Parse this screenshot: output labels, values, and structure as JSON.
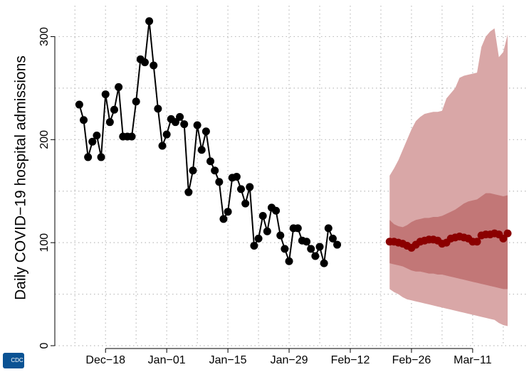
{
  "chart_data": {
    "type": "line",
    "y_label": "Daily COVID−19 hospital admissions",
    "logo_text": "CDC",
    "xlim": [
      -11.6,
      96.4
    ],
    "ylim": [
      0,
      330
    ],
    "xticks": [
      {
        "value": 0,
        "label": "Dec−18"
      },
      {
        "value": 14,
        "label": "Jan−01"
      },
      {
        "value": 28,
        "label": "Jan−15"
      },
      {
        "value": 42,
        "label": "Jan−29"
      },
      {
        "value": 56,
        "label": "Feb−12"
      },
      {
        "value": 70,
        "label": "Feb−26"
      },
      {
        "value": 84,
        "label": "Mar−11"
      }
    ],
    "xminor": [
      -7,
      7,
      21,
      35,
      49,
      63,
      77,
      91
    ],
    "yticks": [
      0,
      100,
      200,
      300
    ],
    "yminor": [
      50,
      150,
      250
    ],
    "grid": true,
    "observed": {
      "color": "#000000",
      "x": [
        -6,
        -5,
        -4,
        -3,
        -2,
        -1,
        0,
        1,
        2,
        3,
        4,
        5,
        6,
        7,
        8,
        9,
        10,
        11,
        12,
        13,
        14,
        15,
        16,
        17,
        18,
        19,
        20,
        21,
        22,
        23,
        24,
        25,
        26,
        27,
        28,
        29,
        30,
        31,
        32,
        33,
        34,
        35,
        36,
        37,
        38,
        39,
        40,
        41,
        42,
        43,
        44,
        45,
        46,
        47,
        48,
        49,
        50,
        51,
        52,
        53
      ],
      "values": [
        234,
        219,
        183,
        198,
        204,
        183,
        244,
        217,
        229,
        251,
        203,
        203,
        203,
        237,
        278,
        275,
        315,
        272,
        230,
        194,
        205,
        220,
        217,
        222,
        215,
        149,
        170,
        214,
        190,
        208,
        179,
        170,
        159,
        123,
        130,
        163,
        164,
        152,
        138,
        154,
        97,
        104,
        126,
        111,
        134,
        131,
        107,
        94,
        82,
        114,
        114,
        102,
        101,
        94,
        87,
        96,
        80,
        114,
        104,
        98
      ]
    },
    "forecast": {
      "median_color": "#8b0000",
      "inner_color": "#c27777",
      "outer_color": "#d9a7a7",
      "x": [
        65,
        66,
        67,
        68,
        69,
        70,
        71,
        72,
        73,
        74,
        75,
        76,
        77,
        78,
        79,
        80,
        81,
        82,
        83,
        84,
        85,
        86,
        87,
        88,
        89,
        90,
        91,
        92
      ],
      "median": [
        101,
        101,
        100,
        99,
        97,
        95,
        98,
        101,
        102,
        103,
        103,
        102,
        99,
        100,
        104,
        105,
        106,
        105,
        104,
        101,
        101,
        107,
        108,
        108,
        109,
        108,
        104,
        109
      ],
      "inner_lower": [
        80,
        79,
        78,
        77,
        75,
        73,
        72,
        72,
        71,
        70,
        70,
        69,
        69,
        68,
        67,
        66,
        65,
        64,
        63,
        62,
        61,
        60,
        59,
        58,
        57,
        56,
        55,
        55
      ],
      "inner_upper": [
        122,
        118,
        116,
        115,
        117,
        120,
        122,
        123,
        124,
        124,
        125,
        125,
        126,
        128,
        130,
        132,
        135,
        138,
        140,
        141,
        142,
        145,
        148,
        148,
        147,
        146,
        145,
        146
      ],
      "outer_lower": [
        55,
        52,
        50,
        47,
        45,
        44,
        43,
        42,
        41,
        40,
        39,
        38,
        37,
        36,
        35,
        34,
        33,
        32,
        31,
        30,
        29,
        28,
        27,
        26,
        25,
        22,
        20,
        19
      ],
      "outer_upper": [
        165,
        172,
        180,
        190,
        200,
        210,
        218,
        222,
        225,
        226,
        227,
        227,
        228,
        240,
        245,
        250,
        260,
        262,
        263,
        264,
        265,
        290,
        300,
        305,
        308,
        280,
        285,
        302
      ]
    }
  }
}
